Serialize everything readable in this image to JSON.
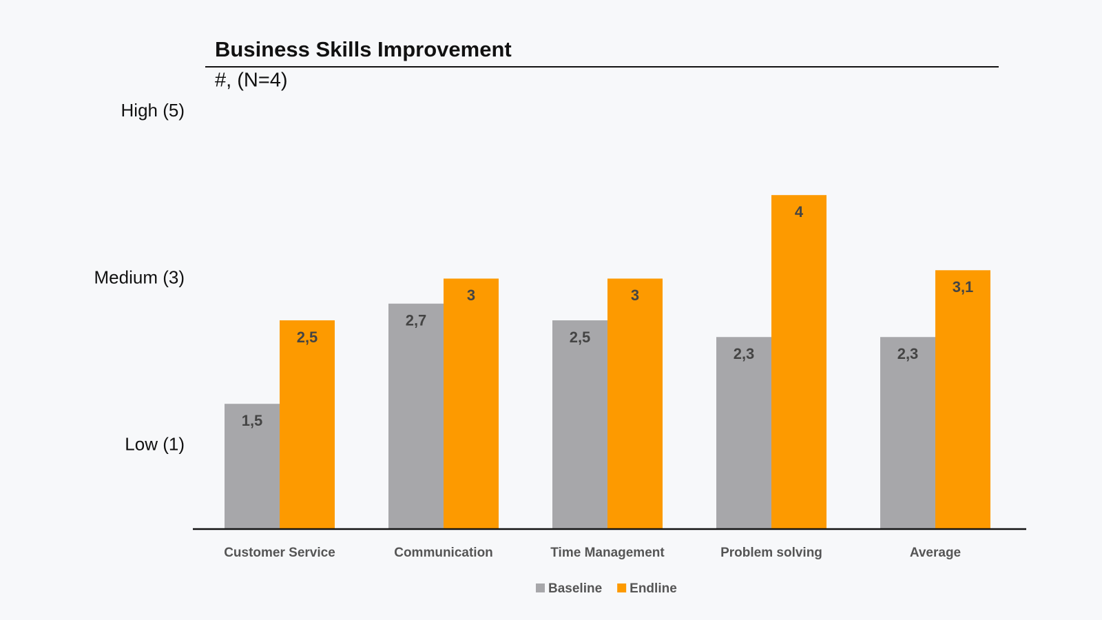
{
  "chart_data": {
    "type": "bar",
    "title": "Business Skills Improvement",
    "subtitle": "#, (N=4)",
    "categories": [
      "Customer Service",
      "Communication",
      "Time Management",
      "Problem solving",
      "Average"
    ],
    "series": [
      {
        "name": "Baseline",
        "color": "#a7a7aa",
        "values": [
          1.5,
          2.7,
          2.5,
          2.3,
          2.3
        ],
        "value_labels": [
          "1,5",
          "2,7",
          "2,5",
          "2,3",
          "2,3"
        ]
      },
      {
        "name": "Endline",
        "color": "#fd9a00",
        "values": [
          2.5,
          3,
          3,
          4,
          3.1
        ],
        "value_labels": [
          "2,5",
          "3",
          "3",
          "4",
          "3,1"
        ]
      }
    ],
    "ylim": [
      0,
      5
    ],
    "yticks": [
      {
        "value": 1,
        "label": "Low (1)"
      },
      {
        "value": 3,
        "label": "Medium (3)"
      },
      {
        "value": 5,
        "label": "High (5)"
      }
    ],
    "grid": false,
    "legend": "bottom"
  }
}
